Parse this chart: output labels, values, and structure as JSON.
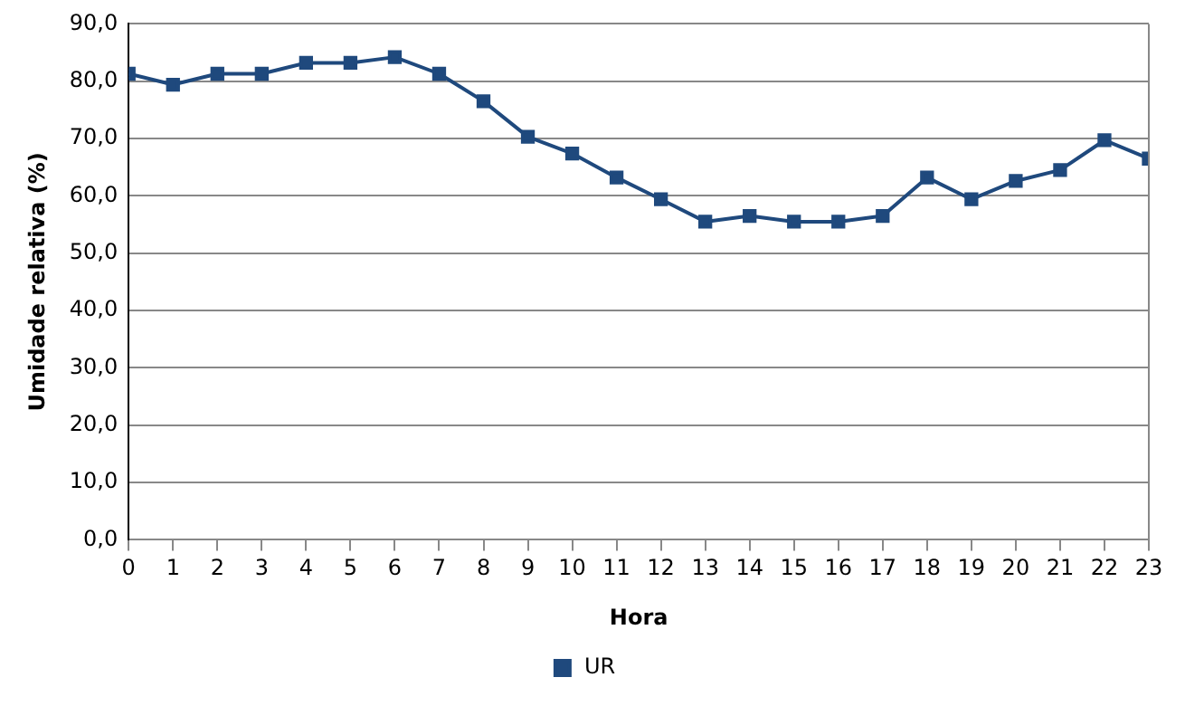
{
  "chart_data": {
    "type": "line",
    "xlabel": "Hora",
    "ylabel": "Umidade relativa (%)",
    "x": [
      0,
      1,
      2,
      3,
      4,
      5,
      6,
      7,
      8,
      9,
      10,
      11,
      12,
      13,
      14,
      15,
      16,
      17,
      18,
      19,
      20,
      21,
      22,
      23
    ],
    "series": [
      {
        "name": "UR",
        "color": "#1f497d",
        "values": [
          81.3,
          79.4,
          81.3,
          81.3,
          83.2,
          83.2,
          84.2,
          81.3,
          76.5,
          70.3,
          67.4,
          63.2,
          59.4,
          55.5,
          56.5,
          55.5,
          55.5,
          56.5,
          63.2,
          59.4,
          62.6,
          64.5,
          69.7,
          66.5
        ]
      }
    ],
    "xlim": [
      0,
      23
    ],
    "xticks": [
      0,
      1,
      2,
      3,
      4,
      5,
      6,
      7,
      8,
      9,
      10,
      11,
      12,
      13,
      14,
      15,
      16,
      17,
      18,
      19,
      20,
      21,
      22,
      23
    ],
    "ylim": [
      0,
      90
    ],
    "yticks": [
      {
        "value": 0,
        "label": "0,0"
      },
      {
        "value": 10,
        "label": "10,0"
      },
      {
        "value": 20,
        "label": "20,0"
      },
      {
        "value": 30,
        "label": "30,0"
      },
      {
        "value": 40,
        "label": "40,0"
      },
      {
        "value": 50,
        "label": "50,0"
      },
      {
        "value": 60,
        "label": "60,0"
      },
      {
        "value": 70,
        "label": "70,0"
      },
      {
        "value": 80,
        "label": "80,0"
      },
      {
        "value": 90,
        "label": "90,0"
      }
    ],
    "grid": "y",
    "legend": "bottom",
    "marker": "square",
    "line_style": "solid"
  }
}
